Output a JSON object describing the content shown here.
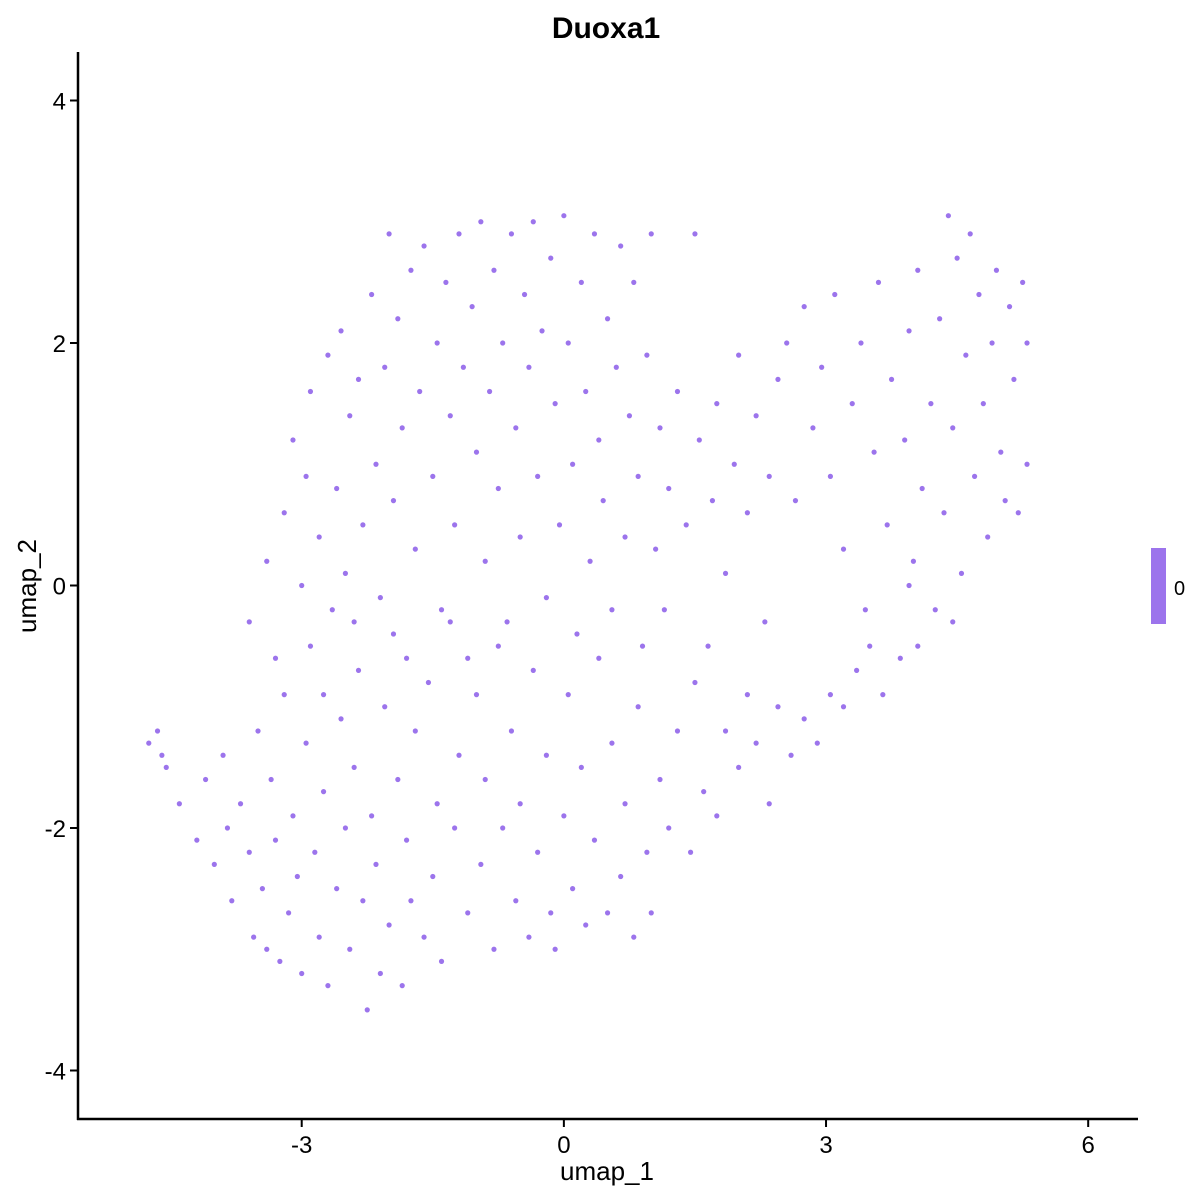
{
  "chart_data": {
    "type": "scatter",
    "title": "Duoxa1",
    "xlabel": "umap_1",
    "ylabel": "umap_2",
    "xlim": [
      -5.56,
      6.57
    ],
    "ylim": [
      -4.4,
      4.4
    ],
    "x_ticks": [
      -3,
      0,
      3,
      6
    ],
    "y_ticks": [
      -4,
      -2,
      0,
      2,
      4
    ],
    "x_tick_labels": [
      "-3",
      "0",
      "3",
      "6"
    ],
    "y_tick_labels": [
      "-4",
      "-2",
      "0",
      "2",
      "4"
    ],
    "grid": false,
    "point_color": "#9c74ec",
    "legend": {
      "placement": "right",
      "label": "0",
      "color": "#9c74ec"
    },
    "points": [
      [
        -4.75,
        -1.3
      ],
      [
        -4.65,
        -1.2
      ],
      [
        -4.6,
        -1.4
      ],
      [
        -4.55,
        -1.5
      ],
      [
        -4.4,
        -1.8
      ],
      [
        -4.2,
        -2.1
      ],
      [
        -4.1,
        -1.6
      ],
      [
        -4.0,
        -2.3
      ],
      [
        -3.9,
        -1.4
      ],
      [
        -3.85,
        -2.0
      ],
      [
        -3.8,
        -2.6
      ],
      [
        -3.7,
        -1.8
      ],
      [
        -3.6,
        -2.2
      ],
      [
        -3.55,
        -2.9
      ],
      [
        -3.5,
        -1.2
      ],
      [
        -3.45,
        -2.5
      ],
      [
        -3.4,
        -3.0
      ],
      [
        -3.35,
        -1.6
      ],
      [
        -3.3,
        -2.1
      ],
      [
        -3.25,
        -3.1
      ],
      [
        -3.2,
        -0.9
      ],
      [
        -3.15,
        -2.7
      ],
      [
        -3.1,
        -1.9
      ],
      [
        -3.05,
        -2.4
      ],
      [
        -3.0,
        -3.2
      ],
      [
        -2.95,
        -1.3
      ],
      [
        -2.9,
        -0.5
      ],
      [
        -2.85,
        -2.2
      ],
      [
        -2.8,
        -2.9
      ],
      [
        -2.75,
        -1.7
      ],
      [
        -2.7,
        -3.3
      ],
      [
        -2.65,
        -0.2
      ],
      [
        -2.6,
        -2.5
      ],
      [
        -2.55,
        -1.1
      ],
      [
        -2.5,
        -2.0
      ],
      [
        -2.45,
        -3.0
      ],
      [
        -2.4,
        -1.5
      ],
      [
        -2.35,
        -0.7
      ],
      [
        -2.3,
        -2.6
      ],
      [
        -2.25,
        -3.5
      ],
      [
        -2.2,
        -1.9
      ],
      [
        -2.15,
        -2.3
      ],
      [
        -2.1,
        -3.2
      ],
      [
        -2.05,
        -1.0
      ],
      [
        -2.0,
        -2.8
      ],
      [
        -1.95,
        -0.4
      ],
      [
        -1.9,
        -1.6
      ],
      [
        -1.85,
        -3.3
      ],
      [
        -1.8,
        -2.1
      ],
      [
        -1.75,
        -2.6
      ],
      [
        -1.7,
        -1.2
      ],
      [
        -1.6,
        -2.9
      ],
      [
        -1.55,
        -0.8
      ],
      [
        -1.5,
        -2.4
      ],
      [
        -1.45,
        -1.8
      ],
      [
        -1.4,
        -3.1
      ],
      [
        -1.3,
        -0.3
      ],
      [
        -1.25,
        -2.0
      ],
      [
        -1.2,
        -1.4
      ],
      [
        -1.1,
        -2.7
      ],
      [
        -1.0,
        -0.9
      ],
      [
        -0.95,
        -2.3
      ],
      [
        -0.9,
        -1.6
      ],
      [
        -0.8,
        -3.0
      ],
      [
        -0.75,
        -0.5
      ],
      [
        -0.7,
        -2.0
      ],
      [
        -0.6,
        -1.2
      ],
      [
        -0.55,
        -2.6
      ],
      [
        -0.5,
        -1.8
      ],
      [
        -0.4,
        -2.9
      ],
      [
        -0.35,
        -0.7
      ],
      [
        -0.3,
        -2.2
      ],
      [
        -0.2,
        -1.4
      ],
      [
        -0.15,
        -2.7
      ],
      [
        -0.1,
        -3.0
      ],
      [
        0.0,
        -1.9
      ],
      [
        0.05,
        -0.9
      ],
      [
        0.1,
        -2.5
      ],
      [
        0.2,
        -1.5
      ],
      [
        0.25,
        -2.8
      ],
      [
        0.35,
        -2.1
      ],
      [
        0.4,
        -0.6
      ],
      [
        0.5,
        -2.7
      ],
      [
        0.55,
        -1.3
      ],
      [
        0.65,
        -2.4
      ],
      [
        0.7,
        -1.8
      ],
      [
        0.8,
        -2.9
      ],
      [
        0.85,
        -1.0
      ],
      [
        0.95,
        -2.2
      ],
      [
        1.0,
        -2.7
      ],
      [
        1.1,
        -1.6
      ],
      [
        1.2,
        -2.0
      ],
      [
        1.3,
        -1.2
      ],
      [
        1.45,
        -2.2
      ],
      [
        1.5,
        -0.8
      ],
      [
        1.6,
        -1.7
      ],
      [
        1.75,
        -1.9
      ],
      [
        1.85,
        -1.2
      ],
      [
        2.0,
        -1.5
      ],
      [
        2.1,
        -0.9
      ],
      [
        2.2,
        -1.3
      ],
      [
        2.35,
        -1.8
      ],
      [
        2.45,
        -1.0
      ],
      [
        2.6,
        -1.4
      ],
      [
        2.75,
        -1.1
      ],
      [
        2.9,
        -1.3
      ],
      [
        3.05,
        -0.9
      ],
      [
        3.2,
        -1.0
      ],
      [
        3.35,
        -0.7
      ],
      [
        3.5,
        -0.5
      ],
      [
        -3.6,
        -0.3
      ],
      [
        -3.4,
        0.2
      ],
      [
        -3.3,
        -0.6
      ],
      [
        -3.2,
        0.6
      ],
      [
        -3.1,
        1.2
      ],
      [
        -3.0,
        0.0
      ],
      [
        -2.95,
        0.9
      ],
      [
        -2.9,
        1.6
      ],
      [
        -2.8,
        0.4
      ],
      [
        -2.75,
        -0.9
      ],
      [
        -2.7,
        1.9
      ],
      [
        -2.6,
        0.8
      ],
      [
        -2.55,
        2.1
      ],
      [
        -2.5,
        0.1
      ],
      [
        -2.45,
        1.4
      ],
      [
        -2.4,
        -0.3
      ],
      [
        -2.35,
        1.7
      ],
      [
        -2.3,
        0.5
      ],
      [
        -2.2,
        2.4
      ],
      [
        -2.15,
        1.0
      ],
      [
        -2.1,
        -0.1
      ],
      [
        -2.05,
        1.8
      ],
      [
        -2.0,
        2.9
      ],
      [
        -1.95,
        0.7
      ],
      [
        -1.9,
        2.2
      ],
      [
        -1.85,
        1.3
      ],
      [
        -1.8,
        -0.6
      ],
      [
        -1.75,
        2.6
      ],
      [
        -1.7,
        0.3
      ],
      [
        -1.65,
        1.6
      ],
      [
        -1.6,
        2.8
      ],
      [
        -1.5,
        0.9
      ],
      [
        -1.45,
        2.0
      ],
      [
        -1.4,
        -0.2
      ],
      [
        -1.35,
        2.5
      ],
      [
        -1.3,
        1.4
      ],
      [
        -1.25,
        0.5
      ],
      [
        -1.2,
        2.9
      ],
      [
        -1.15,
        1.8
      ],
      [
        -1.1,
        -0.6
      ],
      [
        -1.05,
        2.3
      ],
      [
        -1.0,
        1.1
      ],
      [
        -0.95,
        3.0
      ],
      [
        -0.9,
        0.2
      ],
      [
        -0.85,
        1.6
      ],
      [
        -0.8,
        2.6
      ],
      [
        -0.75,
        0.8
      ],
      [
        -0.7,
        2.0
      ],
      [
        -0.65,
        -0.3
      ],
      [
        -0.6,
        2.9
      ],
      [
        -0.55,
        1.3
      ],
      [
        -0.5,
        0.4
      ],
      [
        -0.45,
        2.4
      ],
      [
        -0.4,
        1.8
      ],
      [
        -0.35,
        3.0
      ],
      [
        -0.3,
        0.9
      ],
      [
        -0.25,
        2.1
      ],
      [
        -0.2,
        -0.1
      ],
      [
        -0.15,
        2.7
      ],
      [
        -0.1,
        1.5
      ],
      [
        -0.05,
        0.5
      ],
      [
        0.0,
        3.05
      ],
      [
        0.05,
        2.0
      ],
      [
        0.1,
        1.0
      ],
      [
        0.15,
        -0.4
      ],
      [
        0.2,
        2.5
      ],
      [
        0.25,
        1.6
      ],
      [
        0.3,
        0.2
      ],
      [
        0.35,
        2.9
      ],
      [
        0.4,
        1.2
      ],
      [
        0.45,
        0.7
      ],
      [
        0.5,
        2.2
      ],
      [
        0.55,
        -0.2
      ],
      [
        0.6,
        1.8
      ],
      [
        0.65,
        2.8
      ],
      [
        0.7,
        0.4
      ],
      [
        0.75,
        1.4
      ],
      [
        0.8,
        2.5
      ],
      [
        0.85,
        0.9
      ],
      [
        0.9,
        -0.5
      ],
      [
        0.95,
        1.9
      ],
      [
        1.0,
        2.9
      ],
      [
        1.05,
        0.3
      ],
      [
        1.1,
        1.3
      ],
      [
        1.15,
        -0.2
      ],
      [
        1.2,
        0.8
      ],
      [
        1.3,
        1.6
      ],
      [
        1.4,
        0.5
      ],
      [
        1.5,
        2.9
      ],
      [
        1.55,
        1.2
      ],
      [
        1.65,
        -0.5
      ],
      [
        1.7,
        0.7
      ],
      [
        1.75,
        1.5
      ],
      [
        1.85,
        0.1
      ],
      [
        1.95,
        1.0
      ],
      [
        2.0,
        1.9
      ],
      [
        2.1,
        0.6
      ],
      [
        2.2,
        1.4
      ],
      [
        2.3,
        -0.3
      ],
      [
        2.35,
        0.9
      ],
      [
        2.45,
        1.7
      ],
      [
        2.55,
        2.0
      ],
      [
        2.65,
        0.7
      ],
      [
        2.75,
        2.3
      ],
      [
        2.85,
        1.3
      ],
      [
        2.95,
        1.8
      ],
      [
        3.05,
        0.9
      ],
      [
        3.1,
        2.4
      ],
      [
        3.2,
        0.3
      ],
      [
        3.3,
        1.5
      ],
      [
        3.4,
        2.0
      ],
      [
        3.45,
        -0.2
      ],
      [
        3.55,
        1.1
      ],
      [
        3.6,
        2.5
      ],
      [
        3.7,
        0.5
      ],
      [
        3.75,
        1.7
      ],
      [
        3.85,
        -0.6
      ],
      [
        3.9,
        1.2
      ],
      [
        3.95,
        2.1
      ],
      [
        4.0,
        0.2
      ],
      [
        4.05,
        2.6
      ],
      [
        4.1,
        0.8
      ],
      [
        4.2,
        1.5
      ],
      [
        4.25,
        -0.2
      ],
      [
        4.3,
        2.2
      ],
      [
        4.35,
        0.6
      ],
      [
        4.4,
        3.05
      ],
      [
        4.45,
        1.3
      ],
      [
        4.5,
        2.7
      ],
      [
        4.55,
        0.1
      ],
      [
        4.6,
        1.9
      ],
      [
        4.65,
        2.9
      ],
      [
        4.7,
        0.9
      ],
      [
        4.75,
        2.4
      ],
      [
        4.8,
        1.5
      ],
      [
        4.85,
        0.4
      ],
      [
        4.9,
        2.0
      ],
      [
        4.95,
        2.6
      ],
      [
        5.0,
        1.1
      ],
      [
        5.05,
        0.7
      ],
      [
        5.1,
        2.3
      ],
      [
        5.15,
        1.7
      ],
      [
        5.2,
        0.6
      ],
      [
        5.25,
        2.5
      ],
      [
        5.3,
        2.0
      ],
      [
        5.3,
        1.0
      ],
      [
        4.45,
        -0.3
      ],
      [
        4.05,
        -0.5
      ],
      [
        3.65,
        -0.9
      ],
      [
        3.95,
        0.0
      ]
    ]
  }
}
